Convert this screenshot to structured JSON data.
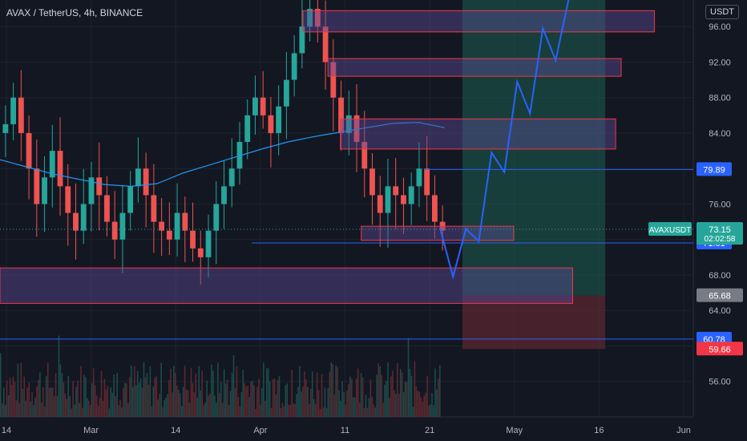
{
  "header": {
    "title": "AVAX / TetherUS, 4h, BINANCE",
    "currency": "USDT"
  },
  "chart_data": {
    "type": "candlestick",
    "title": "AVAX / TetherUS, 4h, BINANCE",
    "ylim": [
      52,
      99
    ],
    "y_ticks": [
      "96.00",
      "92.00",
      "88.00",
      "84.00",
      "80.00",
      "76.00",
      "72.00",
      "68.00",
      "64.00",
      "60.00",
      "56.00"
    ],
    "x_ticks": [
      "14",
      "Mar",
      "14",
      "Apr",
      "11",
      "21",
      "May",
      "16",
      "Jun"
    ],
    "closes": [
      85,
      88,
      84,
      80,
      76,
      79,
      82,
      78,
      75,
      73,
      76,
      79,
      77,
      74,
      72,
      75,
      78,
      80,
      77,
      74,
      73,
      72,
      75,
      73,
      71,
      70,
      73,
      76,
      78,
      80,
      83,
      86,
      88,
      86,
      84,
      87,
      90,
      93,
      96,
      98,
      96,
      92,
      88,
      84,
      86,
      83,
      80,
      77,
      75,
      78,
      77,
      76,
      78,
      80,
      77,
      74,
      73
    ],
    "moving_average": [
      81,
      80.2,
      79.4,
      78.8,
      78.2,
      78,
      78.3,
      79.5,
      80.4,
      81.3,
      82.2,
      83,
      83.6,
      84.1,
      84.6,
      85.1,
      85.2,
      84.6
    ],
    "zones": [
      {
        "low": 95.4,
        "high": 97.8
      },
      {
        "low": 90.4,
        "high": 92.4
      },
      {
        "low": 82.2,
        "high": 85.6
      },
      {
        "low": 71.9,
        "high": 73.5
      },
      {
        "low": 64.8,
        "high": 68.8
      }
    ],
    "levels": [
      {
        "value": 79.89,
        "label": "79.89",
        "color": "#2962ff"
      },
      {
        "value": 71.61,
        "label": "71.61",
        "color": "#2962ff"
      },
      {
        "value": 60.78,
        "label": "60.78",
        "color": "#2962ff"
      }
    ],
    "price_labels": [
      {
        "value": 73.15,
        "label": "73.15",
        "sublabel": "02:02:58",
        "color": "#26a69a"
      },
      {
        "value": 65.68,
        "label": "65.68",
        "color": "#787b86"
      },
      {
        "value": 59.66,
        "label": "59.66",
        "color": "#f23645"
      }
    ],
    "symbol_badge": "AVAXUSDT",
    "projection": [
      73.2,
      67.8,
      73.2,
      71.8,
      81.8,
      79.6,
      89.8,
      86.2,
      95.8,
      92.2,
      99
    ],
    "position": {
      "entry": 65.68,
      "target": 99,
      "stop": 59.66
    },
    "colors": {
      "up": "#26a69a",
      "down": "#ef5350",
      "zone_fill": "#5d4b9a",
      "zone_border": "#f23645",
      "projection": "#2962ff",
      "ma": "#2196f3"
    }
  }
}
